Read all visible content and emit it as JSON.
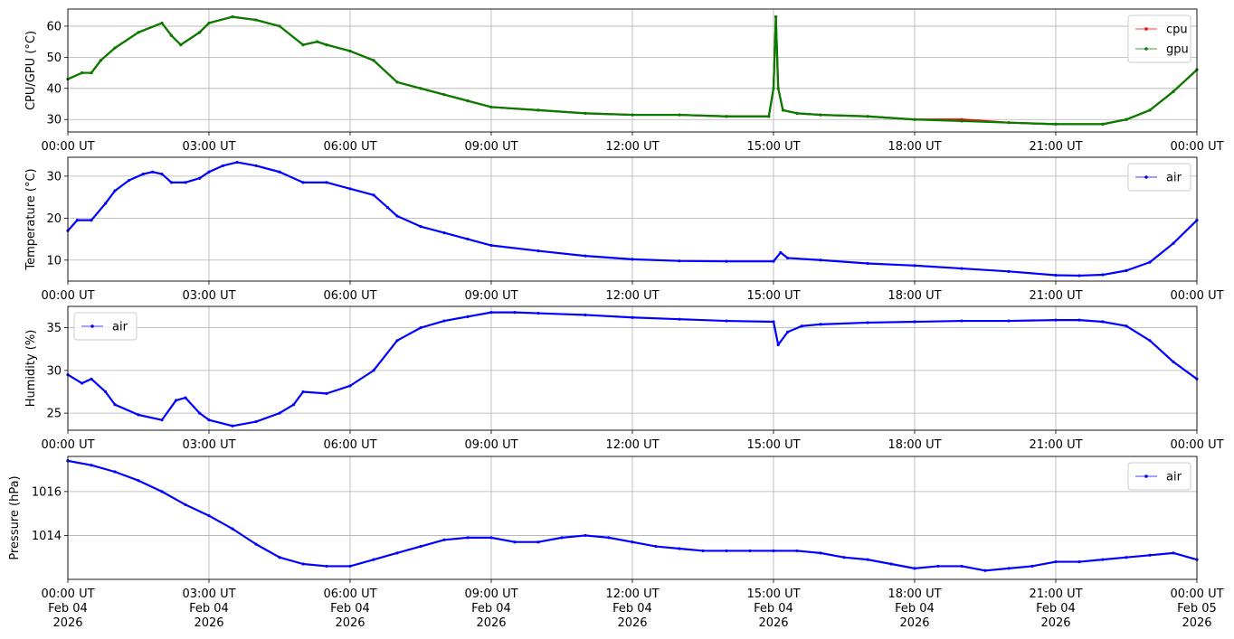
{
  "chart_data": [
    {
      "type": "line",
      "ylabel": "CPU/GPU (°C)",
      "ylim": [
        26,
        65.5
      ],
      "yticks": [
        30,
        40,
        50,
        60
      ],
      "xlim": [
        "00:00",
        "24:00"
      ],
      "xtick_labels": [
        "00:00 UT",
        "03:00 UT",
        "06:00 UT",
        "09:00 UT",
        "12:00 UT",
        "15:00 UT",
        "18:00 UT",
        "21:00 UT",
        "00:00 UT"
      ],
      "grid": true,
      "legend": "top-right",
      "series": [
        {
          "name": "cpu",
          "color": "#ff0000",
          "x_hours": [
            0,
            0.3,
            0.5,
            0.7,
            1.0,
            1.5,
            2.0,
            2.2,
            2.4,
            2.8,
            3.0,
            3.5,
            4.0,
            4.5,
            5.0,
            5.3,
            5.5,
            6.0,
            6.5,
            7.0,
            7.5,
            8.0,
            8.5,
            9.0,
            10.0,
            11.0,
            12.0,
            13.0,
            14.0,
            14.9,
            15.0,
            15.05,
            15.1,
            15.2,
            15.5,
            16.0,
            17.0,
            18.0,
            19.0,
            20.0,
            21.0,
            22.0,
            22.5,
            23.0,
            23.5,
            24.0
          ],
          "values": [
            43,
            45,
            45,
            49,
            53,
            58,
            61,
            57,
            54,
            58,
            61,
            63,
            62,
            60,
            54,
            55,
            54,
            52,
            49,
            42,
            40,
            38,
            36,
            34,
            33,
            32,
            31.5,
            31.5,
            31,
            31,
            40,
            63,
            40,
            33,
            32,
            31.5,
            31,
            30,
            30,
            29,
            28.5,
            28.5,
            30,
            33,
            39,
            46
          ]
        },
        {
          "name": "gpu",
          "color": "#008000",
          "x_hours": [
            0,
            0.3,
            0.5,
            0.7,
            1.0,
            1.5,
            2.0,
            2.2,
            2.4,
            2.8,
            3.0,
            3.5,
            4.0,
            4.5,
            5.0,
            5.3,
            5.5,
            6.0,
            6.5,
            7.0,
            7.5,
            8.0,
            8.5,
            9.0,
            10.0,
            11.0,
            12.0,
            13.0,
            14.0,
            14.9,
            15.0,
            15.05,
            15.1,
            15.2,
            15.5,
            16.0,
            17.0,
            18.0,
            19.0,
            20.0,
            21.0,
            22.0,
            22.5,
            23.0,
            23.5,
            24.0
          ],
          "values": [
            43,
            45,
            45,
            49,
            53,
            58,
            61,
            57,
            54,
            58,
            61,
            63,
            62,
            60,
            54,
            55,
            54,
            52,
            49,
            42,
            40,
            38,
            36,
            34,
            33,
            32,
            31.5,
            31.5,
            31,
            31,
            40,
            63,
            40,
            33,
            32,
            31.5,
            31,
            30,
            29.5,
            29,
            28.5,
            28.5,
            30,
            33,
            39,
            46
          ]
        }
      ]
    },
    {
      "type": "line",
      "ylabel": "Temperature (°C)",
      "ylim": [
        5,
        34.5
      ],
      "yticks": [
        10,
        20,
        30
      ],
      "xlim": [
        "00:00",
        "24:00"
      ],
      "xtick_labels": [
        "00:00 UT",
        "03:00 UT",
        "06:00 UT",
        "09:00 UT",
        "12:00 UT",
        "15:00 UT",
        "18:00 UT",
        "21:00 UT",
        "00:00 UT"
      ],
      "grid": true,
      "legend": "top-right",
      "series": [
        {
          "name": "air",
          "color": "#0000ff",
          "x_hours": [
            0,
            0.2,
            0.5,
            0.8,
            1.0,
            1.3,
            1.6,
            1.8,
            2.0,
            2.2,
            2.5,
            2.8,
            3.0,
            3.3,
            3.6,
            4.0,
            4.5,
            5.0,
            5.5,
            6.0,
            6.5,
            6.8,
            7.0,
            7.5,
            8.0,
            8.5,
            9.0,
            10.0,
            11.0,
            12.0,
            13.0,
            14.0,
            15.0,
            15.15,
            15.3,
            16.0,
            17.0,
            18.0,
            19.0,
            20.0,
            21.0,
            21.5,
            22.0,
            22.5,
            23.0,
            23.5,
            24.0
          ],
          "values": [
            17,
            19.5,
            19.5,
            23.5,
            26.5,
            29,
            30.5,
            31,
            30.5,
            28.5,
            28.5,
            29.5,
            31,
            32.5,
            33.3,
            32.5,
            31,
            28.5,
            28.5,
            27,
            25.5,
            22.5,
            20.5,
            18,
            16.5,
            15,
            13.5,
            12.2,
            11,
            10.2,
            9.8,
            9.7,
            9.7,
            11.8,
            10.5,
            10,
            9.2,
            8.7,
            8,
            7.3,
            6.4,
            6.3,
            6.5,
            7.5,
            9.5,
            14,
            19.5
          ]
        }
      ]
    },
    {
      "type": "line",
      "ylabel": "Humidity (%)",
      "ylim": [
        23,
        37.5
      ],
      "yticks": [
        25,
        30,
        35
      ],
      "xlim": [
        "00:00",
        "24:00"
      ],
      "xtick_labels": [
        "00:00 UT",
        "03:00 UT",
        "06:00 UT",
        "09:00 UT",
        "12:00 UT",
        "15:00 UT",
        "18:00 UT",
        "21:00 UT",
        "00:00 UT"
      ],
      "grid": true,
      "legend": "top-left",
      "series": [
        {
          "name": "air",
          "color": "#0000ff",
          "x_hours": [
            0,
            0.3,
            0.5,
            0.8,
            1.0,
            1.5,
            2.0,
            2.3,
            2.5,
            2.8,
            3.0,
            3.5,
            4.0,
            4.5,
            4.8,
            5.0,
            5.5,
            6.0,
            6.5,
            7.0,
            7.5,
            8.0,
            8.5,
            9.0,
            9.5,
            10.0,
            11.0,
            12.0,
            13.0,
            14.0,
            15.0,
            15.1,
            15.3,
            15.6,
            16.0,
            17.0,
            18.0,
            19.0,
            20.0,
            21.0,
            21.5,
            22.0,
            22.5,
            23.0,
            23.5,
            24.0
          ],
          "values": [
            29.5,
            28.5,
            29,
            27.5,
            26,
            24.8,
            24.2,
            26.5,
            26.8,
            25,
            24.2,
            23.5,
            24,
            25,
            26,
            27.5,
            27.3,
            28.2,
            30,
            33.5,
            35,
            35.8,
            36.3,
            36.8,
            36.8,
            36.7,
            36.5,
            36.2,
            36,
            35.8,
            35.7,
            33,
            34.5,
            35.2,
            35.4,
            35.6,
            35.7,
            35.8,
            35.8,
            35.9,
            35.9,
            35.7,
            35.2,
            33.5,
            31,
            29
          ]
        }
      ]
    },
    {
      "type": "line",
      "ylabel": "Pressure (hPa)",
      "ylim": [
        1012.0,
        1017.6
      ],
      "yticks": [
        1014,
        1016
      ],
      "xlim": [
        "2026-02-04 00:00",
        "2026-02-05 00:00"
      ],
      "xtick_labels": [
        [
          "00:00 UT",
          "Feb 04",
          "2026"
        ],
        [
          "03:00 UT",
          "Feb 04",
          "2026"
        ],
        [
          "06:00 UT",
          "Feb 04",
          "2026"
        ],
        [
          "09:00 UT",
          "Feb 04",
          "2026"
        ],
        [
          "12:00 UT",
          "Feb 04",
          "2026"
        ],
        [
          "15:00 UT",
          "Feb 04",
          "2026"
        ],
        [
          "18:00 UT",
          "Feb 04",
          "2026"
        ],
        [
          "21:00 UT",
          "Feb 04",
          "2026"
        ],
        [
          "00:00 UT",
          "Feb 05",
          "2026"
        ]
      ],
      "grid": true,
      "legend": "top-right",
      "series": [
        {
          "name": "air",
          "color": "#0000ff",
          "x_hours": [
            0,
            0.5,
            1.0,
            1.5,
            2.0,
            2.5,
            3.0,
            3.5,
            4.0,
            4.5,
            5.0,
            5.5,
            6.0,
            6.5,
            7.0,
            7.5,
            8.0,
            8.5,
            9.0,
            9.5,
            10.0,
            10.5,
            11.0,
            11.5,
            12.0,
            12.5,
            13.0,
            13.5,
            14.0,
            14.5,
            15.0,
            15.5,
            16.0,
            16.5,
            17.0,
            17.5,
            18.0,
            18.5,
            19.0,
            19.5,
            20.0,
            20.5,
            21.0,
            21.5,
            22.0,
            22.5,
            23.0,
            23.5,
            24.0
          ],
          "values": [
            1017.4,
            1017.2,
            1016.9,
            1016.5,
            1016.0,
            1015.4,
            1014.9,
            1014.3,
            1013.6,
            1013.0,
            1012.7,
            1012.6,
            1012.6,
            1012.9,
            1013.2,
            1013.5,
            1013.8,
            1013.9,
            1013.9,
            1013.7,
            1013.7,
            1013.9,
            1014.0,
            1013.9,
            1013.7,
            1013.5,
            1013.4,
            1013.3,
            1013.3,
            1013.3,
            1013.3,
            1013.3,
            1013.2,
            1013.0,
            1012.9,
            1012.7,
            1012.5,
            1012.6,
            1012.6,
            1012.4,
            1012.5,
            1012.6,
            1012.8,
            1012.8,
            1012.9,
            1013.0,
            1013.1,
            1013.2,
            1012.9
          ]
        }
      ]
    }
  ]
}
